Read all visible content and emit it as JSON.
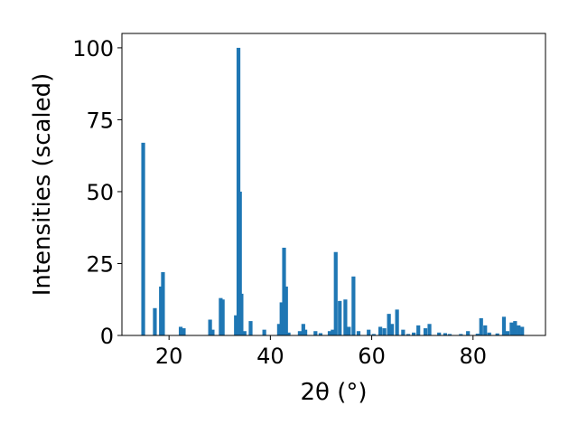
{
  "chart_data": {
    "type": "bar",
    "title": "",
    "xlabel": "2θ (°)",
    "ylabel": "Intensities (scaled)",
    "xlim": [
      10.7,
      94.3
    ],
    "ylim": [
      0,
      105
    ],
    "xticks": [
      20,
      40,
      60,
      80
    ],
    "yticks": [
      0,
      25,
      50,
      75,
      100
    ],
    "grid": false,
    "bar_color": "#1f77b4",
    "bar_width": 0.75,
    "x": [
      14.9,
      17.2,
      18.4,
      18.8,
      22.3,
      22.9,
      28.1,
      28.6,
      30.2,
      30.6,
      33.2,
      33.7,
      34.0,
      34.3,
      34.9,
      36.1,
      38.8,
      41.7,
      42.2,
      42.7,
      43.1,
      43.6,
      45.8,
      46.5,
      46.9,
      48.9,
      49.9,
      51.7,
      52.3,
      52.9,
      53.7,
      54.8,
      55.5,
      56.4,
      57.4,
      59.4,
      60.4,
      61.7,
      62.5,
      63.4,
      64.0,
      65.0,
      66.2,
      67.2,
      68.3,
      69.2,
      70.6,
      71.4,
      73.3,
      74.5,
      75.4,
      77.6,
      79.0,
      80.9,
      81.6,
      82.4,
      83.2,
      84.8,
      86.1,
      86.8,
      87.6,
      88.3,
      89.0,
      89.7
    ],
    "values": [
      67,
      9.5,
      17,
      22,
      3,
      2.5,
      5.5,
      2,
      13,
      12.5,
      7,
      100,
      50,
      14.5,
      1.5,
      5,
      2,
      4,
      11.5,
      30.5,
      17,
      1,
      1.5,
      4,
      2,
      1.5,
      0.8,
      1.5,
      2,
      29,
      12,
      12.5,
      3,
      20.5,
      1.5,
      2,
      0.5,
      3,
      2.5,
      7.5,
      4,
      9,
      2,
      0.5,
      1,
      3.5,
      2.5,
      4,
      1,
      0.8,
      0.5,
      0.5,
      1.5,
      0.6,
      6,
      3.5,
      1,
      0.7,
      6.5,
      1.5,
      4.5,
      5,
      3.5,
      3
    ]
  }
}
